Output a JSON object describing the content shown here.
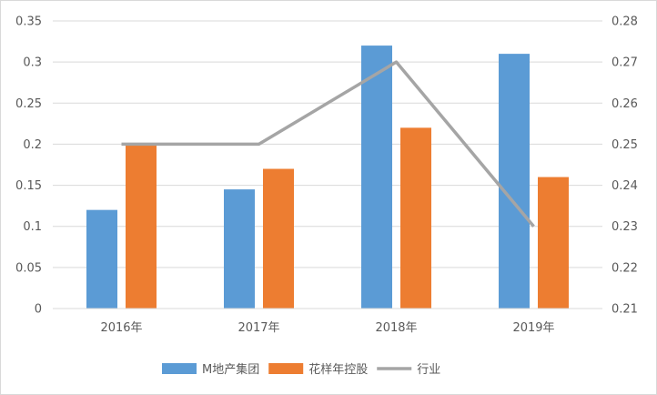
{
  "chart_data": {
    "type": "bar",
    "categories": [
      "2016年",
      "2017年",
      "2018年",
      "2019年"
    ],
    "series": [
      {
        "name": "M地产集团",
        "type": "bar",
        "axis": "left",
        "color": "#5b9bd5",
        "values": [
          0.12,
          0.145,
          0.32,
          0.31
        ]
      },
      {
        "name": "花样年控股",
        "type": "bar",
        "axis": "left",
        "color": "#ed7d31",
        "values": [
          0.2,
          0.17,
          0.22,
          0.16
        ]
      },
      {
        "name": "行业",
        "type": "line",
        "axis": "right",
        "color": "#a5a5a5",
        "values": [
          0.25,
          0.25,
          0.27,
          0.23
        ]
      }
    ],
    "y_left": {
      "min": 0,
      "max": 0.35,
      "ticks": [
        "0",
        "0.05",
        "0.1",
        "0.15",
        "0.2",
        "0.25",
        "0.3",
        "0.35"
      ]
    },
    "y_right": {
      "min": 0.21,
      "max": 0.28,
      "ticks": [
        "0.21",
        "0.22",
        "0.23",
        "0.24",
        "0.25",
        "0.26",
        "0.27",
        "0.28"
      ]
    },
    "grid": true,
    "legend": "bottom"
  }
}
